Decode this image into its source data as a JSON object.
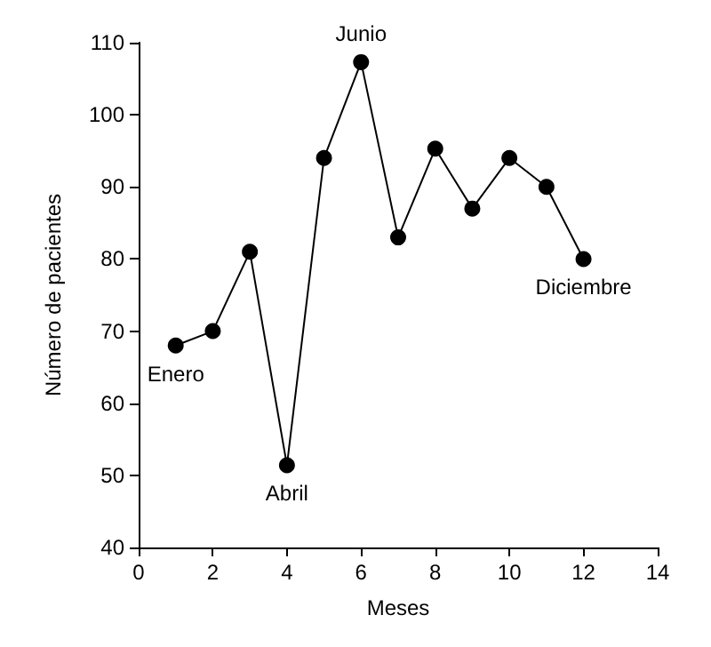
{
  "chart_data": {
    "type": "line",
    "xlabel": "Meses",
    "ylabel": "Número de pacientes",
    "x": [
      1,
      2,
      3,
      4,
      5,
      6,
      7,
      8,
      9,
      10,
      11,
      12
    ],
    "values": [
      68,
      70,
      81,
      51.4,
      94,
      107.3,
      83,
      95.3,
      87,
      94,
      90,
      80
    ],
    "color": "#000000",
    "marker": "circle",
    "line_style": "solid",
    "grid": false,
    "xlim": [
      0,
      14
    ],
    "xticks": [
      0,
      2,
      4,
      6,
      8,
      10,
      12,
      14
    ],
    "ylim": [
      40,
      110
    ],
    "yticks": [
      40,
      50,
      60,
      70,
      80,
      90,
      100,
      110
    ],
    "annotations": [
      {
        "text": "Enero",
        "x": 1,
        "y": 68
      },
      {
        "text": "Abril",
        "x": 4,
        "y": 51.4
      },
      {
        "text": "Junio",
        "x": 6,
        "y": 107.3
      },
      {
        "text": "Diciembre",
        "x": 12,
        "y": 80
      }
    ]
  }
}
